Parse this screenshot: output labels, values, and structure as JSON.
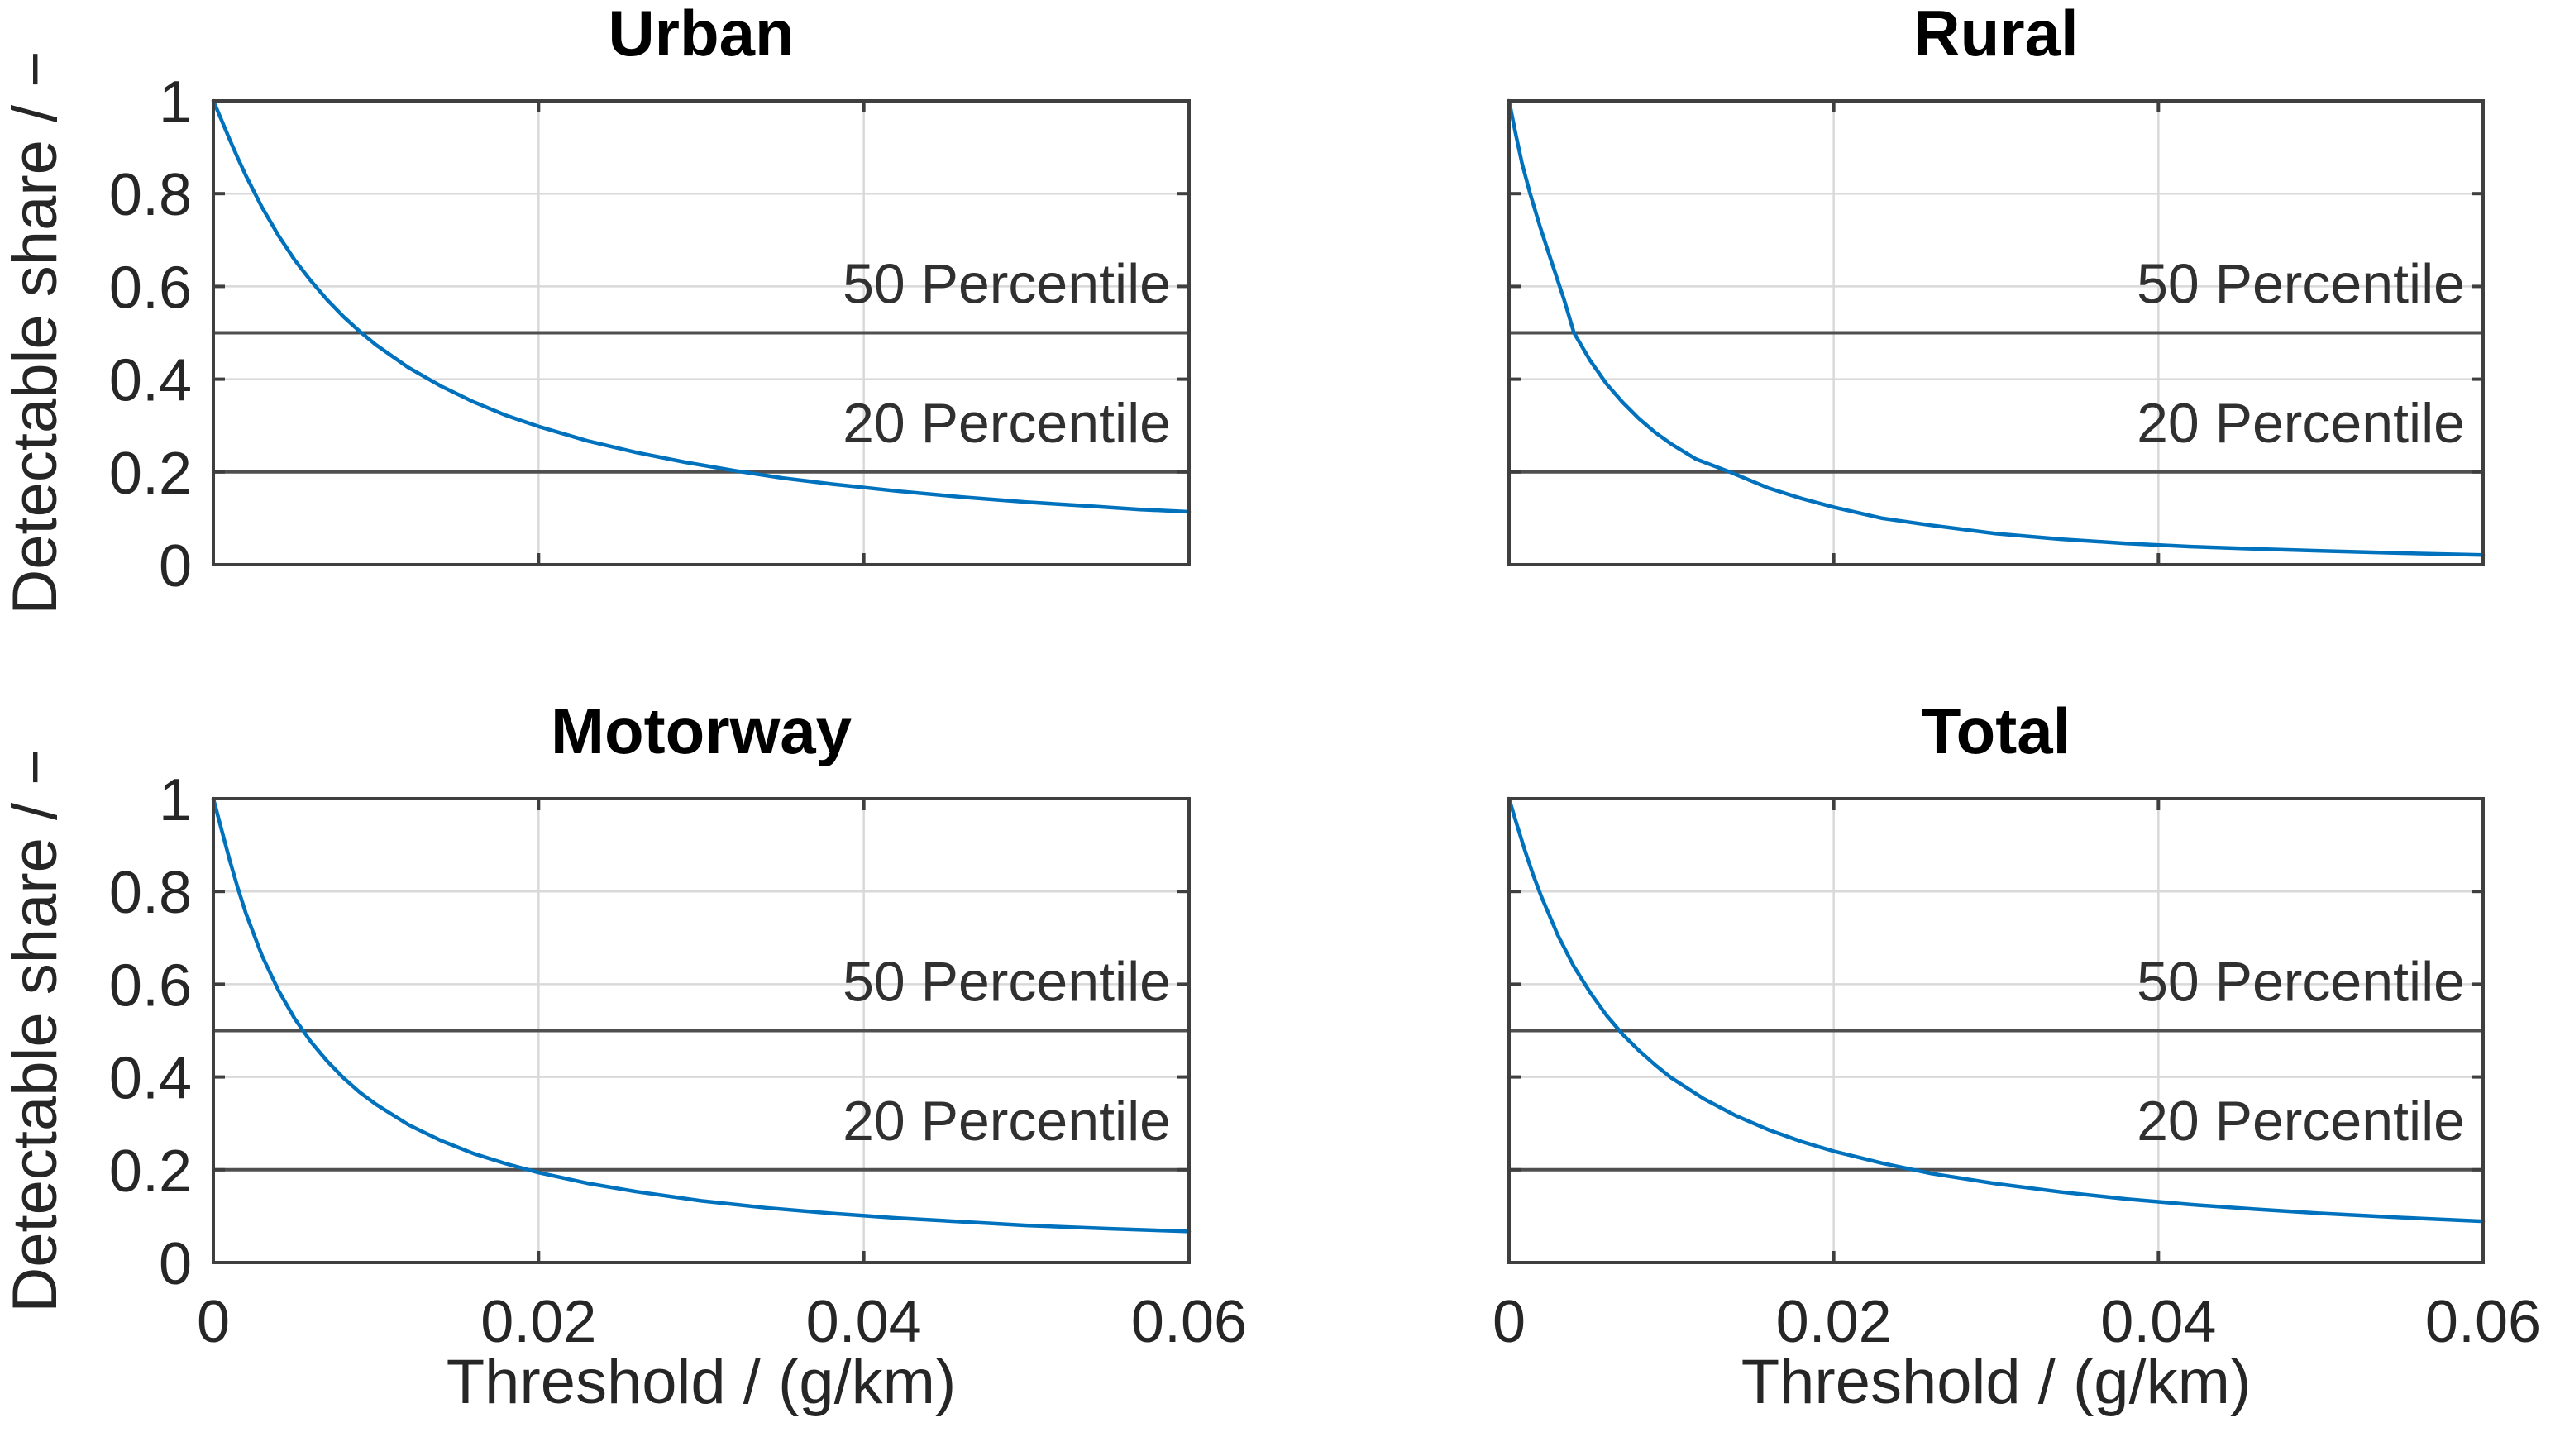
{
  "figure": {
    "background": "#ffffff",
    "colors": {
      "curve": "#0072BD",
      "reference_line": "#4f4f4f",
      "grid": "#d9d9d9",
      "axis_box": "#3f3f3f",
      "tick_text": "#262626",
      "title_text": "#000000"
    }
  },
  "chart_data": [
    {
      "type": "line",
      "title": "Urban",
      "xlabel": "",
      "ylabel": "Detectable share / −",
      "xlim": [
        0,
        0.06
      ],
      "ylim": [
        0,
        1
      ],
      "x_ticks": [
        0,
        0.02,
        0.04,
        0.06
      ],
      "x_tick_labels": [
        "0",
        "0.02",
        "0.04",
        "0.06"
      ],
      "y_ticks": [
        0,
        0.2,
        0.4,
        0.6,
        0.8,
        1
      ],
      "y_tick_labels": [
        "0",
        "0.2",
        "0.4",
        "0.6",
        "0.8",
        "1"
      ],
      "show_x_tick_labels": false,
      "show_y_tick_labels": true,
      "grid": true,
      "legend": "none",
      "reference_lines": [
        {
          "y": 0.5,
          "label": "50 Percentile"
        },
        {
          "y": 0.2,
          "label": "20 Percentile"
        }
      ],
      "series": [
        {
          "name": "detectable-share-urban",
          "x": [
            0,
            0.0005,
            0.001,
            0.0015,
            0.002,
            0.003,
            0.004,
            0.005,
            0.006,
            0.007,
            0.008,
            0.009,
            0.01,
            0.012,
            0.014,
            0.016,
            0.018,
            0.02,
            0.023,
            0.026,
            0.029,
            0.032,
            0.035,
            0.038,
            0.042,
            0.046,
            0.05,
            0.054,
            0.057,
            0.06
          ],
          "y": [
            1,
            0.959,
            0.917,
            0.877,
            0.839,
            0.77,
            0.71,
            0.657,
            0.612,
            0.571,
            0.535,
            0.503,
            0.474,
            0.425,
            0.385,
            0.351,
            0.322,
            0.298,
            0.267,
            0.242,
            0.221,
            0.203,
            0.187,
            0.174,
            0.159,
            0.146,
            0.135,
            0.126,
            0.119,
            0.114
          ]
        }
      ]
    },
    {
      "type": "line",
      "title": "Rural",
      "xlabel": "",
      "ylabel": "",
      "xlim": [
        0,
        0.06
      ],
      "ylim": [
        0,
        1
      ],
      "x_ticks": [
        0,
        0.02,
        0.04,
        0.06
      ],
      "x_tick_labels": [
        "0",
        "0.02",
        "0.04",
        "0.06"
      ],
      "y_ticks": [
        0,
        0.2,
        0.4,
        0.6,
        0.8,
        1
      ],
      "y_tick_labels": [
        "0",
        "0.2",
        "0.4",
        "0.6",
        "0.8",
        "1"
      ],
      "show_x_tick_labels": false,
      "show_y_tick_labels": false,
      "grid": true,
      "legend": "none",
      "reference_lines": [
        {
          "y": 0.5,
          "label": "50 Percentile"
        },
        {
          "y": 0.2,
          "label": "20 Percentile"
        }
      ],
      "series": [
        {
          "name": "detectable-share-rural",
          "x": [
            0,
            0.0004,
            0.0008,
            0.0013,
            0.0019,
            0.0026,
            0.0034,
            0.004,
            0.005,
            0.006,
            0.007,
            0.008,
            0.009,
            0.01,
            0.0115,
            0.0136,
            0.016,
            0.018,
            0.02,
            0.023,
            0.026,
            0.03,
            0.034,
            0.038,
            0.042,
            0.046,
            0.05,
            0.055,
            0.06
          ],
          "y": [
            1,
            0.93,
            0.865,
            0.8,
            0.73,
            0.655,
            0.57,
            0.5,
            0.44,
            0.39,
            0.35,
            0.315,
            0.285,
            0.26,
            0.228,
            0.2,
            0.165,
            0.143,
            0.124,
            0.1,
            0.085,
            0.067,
            0.055,
            0.046,
            0.039,
            0.034,
            0.03,
            0.025,
            0.021
          ]
        }
      ]
    },
    {
      "type": "line",
      "title": "Motorway",
      "xlabel": "Threshold / (g/km)",
      "ylabel": "Detectable share / −",
      "xlim": [
        0,
        0.06
      ],
      "ylim": [
        0,
        1
      ],
      "x_ticks": [
        0,
        0.02,
        0.04,
        0.06
      ],
      "x_tick_labels": [
        "0",
        "0.02",
        "0.04",
        "0.06"
      ],
      "y_ticks": [
        0,
        0.2,
        0.4,
        0.6,
        0.8,
        1
      ],
      "y_tick_labels": [
        "0",
        "0.2",
        "0.4",
        "0.6",
        "0.8",
        "1"
      ],
      "show_x_tick_labels": true,
      "show_y_tick_labels": true,
      "grid": true,
      "legend": "none",
      "reference_lines": [
        {
          "y": 0.5,
          "label": "50 Percentile"
        },
        {
          "y": 0.2,
          "label": "20 Percentile"
        }
      ],
      "series": [
        {
          "name": "detectable-share-motorway",
          "x": [
            0,
            0.0005,
            0.001,
            0.0015,
            0.002,
            0.003,
            0.004,
            0.005,
            0.006,
            0.007,
            0.008,
            0.009,
            0.01,
            0.012,
            0.014,
            0.016,
            0.018,
            0.02,
            0.023,
            0.026,
            0.03,
            0.034,
            0.038,
            0.042,
            0.046,
            0.05,
            0.055,
            0.06
          ],
          "y": [
            1,
            0.934,
            0.868,
            0.808,
            0.753,
            0.661,
            0.587,
            0.526,
            0.476,
            0.434,
            0.398,
            0.367,
            0.341,
            0.297,
            0.263,
            0.235,
            0.213,
            0.194,
            0.171,
            0.153,
            0.133,
            0.118,
            0.106,
            0.096,
            0.088,
            0.08,
            0.073,
            0.067
          ]
        }
      ]
    },
    {
      "type": "line",
      "title": "Total",
      "xlabel": "Threshold / (g/km)",
      "ylabel": "",
      "xlim": [
        0,
        0.06
      ],
      "ylim": [
        0,
        1
      ],
      "x_ticks": [
        0,
        0.02,
        0.04,
        0.06
      ],
      "x_tick_labels": [
        "0",
        "0.02",
        "0.04",
        "0.06"
      ],
      "y_ticks": [
        0,
        0.2,
        0.4,
        0.6,
        0.8,
        1
      ],
      "y_tick_labels": [
        "0",
        "0.2",
        "0.4",
        "0.6",
        "0.8",
        "1"
      ],
      "show_x_tick_labels": true,
      "show_y_tick_labels": false,
      "grid": true,
      "legend": "none",
      "reference_lines": [
        {
          "y": 0.5,
          "label": "50 Percentile"
        },
        {
          "y": 0.2,
          "label": "20 Percentile"
        }
      ],
      "series": [
        {
          "name": "detectable-share-total",
          "x": [
            0,
            0.0005,
            0.001,
            0.0015,
            0.002,
            0.003,
            0.004,
            0.005,
            0.006,
            0.007,
            0.008,
            0.009,
            0.01,
            0.012,
            0.014,
            0.016,
            0.018,
            0.02,
            0.023,
            0.026,
            0.03,
            0.034,
            0.038,
            0.042,
            0.046,
            0.05,
            0.055,
            0.06
          ],
          "y": [
            1,
            0.942,
            0.886,
            0.834,
            0.788,
            0.706,
            0.638,
            0.582,
            0.533,
            0.492,
            0.457,
            0.426,
            0.398,
            0.353,
            0.316,
            0.286,
            0.261,
            0.24,
            0.214,
            0.192,
            0.17,
            0.152,
            0.137,
            0.125,
            0.115,
            0.106,
            0.097,
            0.089
          ]
        }
      ]
    }
  ]
}
